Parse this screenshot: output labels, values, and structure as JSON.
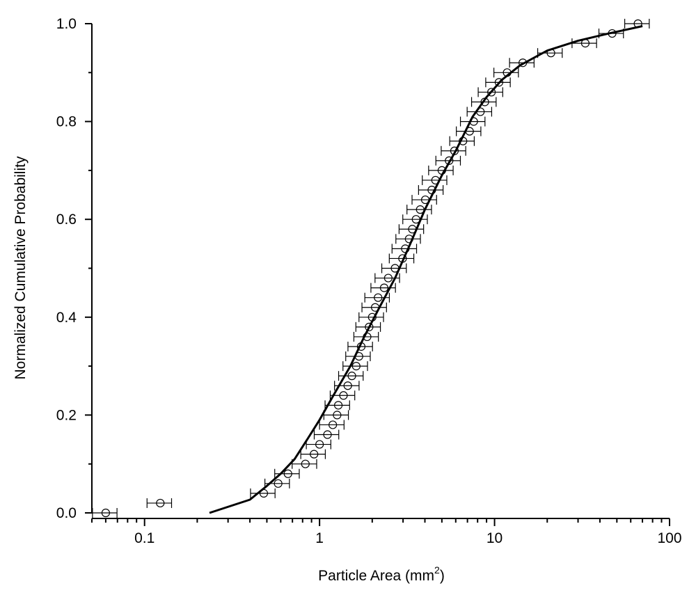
{
  "chart_data": {
    "type": "scatter",
    "title": "",
    "xlabel": "Particle Area (mm",
    "xlabel_sup": "2",
    "xlabel_suffix": ")",
    "ylabel": "Normalized Cumulative Probability",
    "xscale": "log",
    "xlim": [
      0.05,
      100
    ],
    "ylim": [
      0,
      1.0
    ],
    "x_ticks": [
      {
        "value": 0.1,
        "label": "0.1"
      },
      {
        "value": 1,
        "label": "1"
      },
      {
        "value": 10,
        "label": "10"
      },
      {
        "value": 100,
        "label": "100"
      }
    ],
    "y_ticks": [
      {
        "value": 0.0,
        "label": "0.0"
      },
      {
        "value": 0.2,
        "label": "0.2"
      },
      {
        "value": 0.4,
        "label": "0.4"
      },
      {
        "value": 0.6,
        "label": "0.6"
      },
      {
        "value": 0.8,
        "label": "0.8"
      },
      {
        "value": 1.0,
        "label": "1.0"
      }
    ],
    "grid": false,
    "legend": "none",
    "series": [
      {
        "type": "scatter",
        "marker": "open-circle",
        "x_error_fraction": 0.16,
        "points": [
          [
            0.06,
            0.0
          ],
          [
            0.123,
            0.02
          ],
          [
            0.48,
            0.04
          ],
          [
            0.58,
            0.06
          ],
          [
            0.66,
            0.08
          ],
          [
            0.83,
            0.1
          ],
          [
            0.93,
            0.12
          ],
          [
            1.0,
            0.14
          ],
          [
            1.11,
            0.16
          ],
          [
            1.19,
            0.18
          ],
          [
            1.26,
            0.2
          ],
          [
            1.28,
            0.22
          ],
          [
            1.37,
            0.24
          ],
          [
            1.45,
            0.26
          ],
          [
            1.53,
            0.28
          ],
          [
            1.62,
            0.3
          ],
          [
            1.68,
            0.32
          ],
          [
            1.73,
            0.34
          ],
          [
            1.87,
            0.36
          ],
          [
            1.92,
            0.38
          ],
          [
            2.0,
            0.4
          ],
          [
            2.08,
            0.42
          ],
          [
            2.16,
            0.44
          ],
          [
            2.34,
            0.46
          ],
          [
            2.47,
            0.48
          ],
          [
            2.7,
            0.5
          ],
          [
            2.98,
            0.52
          ],
          [
            3.09,
            0.54
          ],
          [
            3.25,
            0.56
          ],
          [
            3.39,
            0.58
          ],
          [
            3.56,
            0.6
          ],
          [
            3.76,
            0.62
          ],
          [
            4.02,
            0.64
          ],
          [
            4.38,
            0.66
          ],
          [
            4.6,
            0.68
          ],
          [
            5.0,
            0.7
          ],
          [
            5.5,
            0.72
          ],
          [
            5.9,
            0.74
          ],
          [
            6.6,
            0.76
          ],
          [
            7.2,
            0.78
          ],
          [
            7.6,
            0.8
          ],
          [
            8.3,
            0.82
          ],
          [
            8.8,
            0.84
          ],
          [
            9.6,
            0.86
          ],
          [
            10.6,
            0.88
          ],
          [
            11.8,
            0.9
          ],
          [
            14.5,
            0.92
          ],
          [
            21.0,
            0.94
          ],
          [
            33.0,
            0.96
          ],
          [
            47.0,
            0.98
          ],
          [
            66.0,
            1.0
          ]
        ]
      },
      {
        "type": "line",
        "style": "solid",
        "color": "#000000",
        "points": [
          [
            0.235,
            0.0
          ],
          [
            0.4,
            0.027
          ],
          [
            0.5,
            0.055
          ],
          [
            0.6,
            0.08
          ],
          [
            0.72,
            0.11
          ],
          [
            0.85,
            0.15
          ],
          [
            1.0,
            0.19
          ],
          [
            1.2,
            0.24
          ],
          [
            1.5,
            0.3
          ],
          [
            1.8,
            0.36
          ],
          [
            2.2,
            0.42
          ],
          [
            2.7,
            0.48
          ],
          [
            3.3,
            0.55
          ],
          [
            4.0,
            0.62
          ],
          [
            5.0,
            0.69
          ],
          [
            6.0,
            0.74
          ],
          [
            7.5,
            0.81
          ],
          [
            9.0,
            0.85
          ],
          [
            11.0,
            0.885
          ],
          [
            14.0,
            0.915
          ],
          [
            20.0,
            0.945
          ],
          [
            30.0,
            0.965
          ],
          [
            45.0,
            0.98
          ],
          [
            70.0,
            0.995
          ]
        ]
      }
    ]
  }
}
